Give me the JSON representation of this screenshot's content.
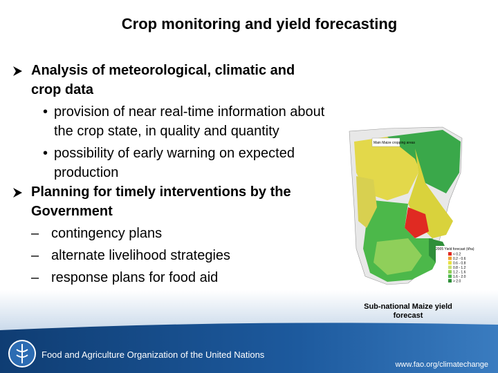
{
  "title": "Crop monitoring and yield forecasting",
  "items": [
    {
      "text": "Analysis of meteorological, climatic and crop data",
      "sub": [
        {
          "marker": "•",
          "text": "provision of near real-time information about the crop state, in quality and quantity"
        },
        {
          "marker": "•",
          "text": "possibility of early warning on expected production"
        }
      ]
    },
    {
      "text": "Planning for timely interventions by the Government",
      "sub": [
        {
          "marker": "–",
          "text": "contingency plans"
        },
        {
          "marker": "–",
          "text": "alternate livelihood strategies"
        },
        {
          "marker": "–",
          "text": "response plans for food aid"
        }
      ]
    }
  ],
  "map": {
    "inset_label": "Main Maize cropping areas",
    "legend_title": "2005 Yield forecast (t/ha)",
    "legend": [
      "< 0.2",
      "0.2 - 0.6",
      "0.6 - 0.8",
      "0.8 - 1.2",
      "1.2 - 1.6",
      "1.6 - 2.0",
      "> 2.0"
    ],
    "caption": "Sub-national Maize yield forecast"
  },
  "footer": {
    "organization": "Food and Agriculture Organization of the United Nations",
    "url": "www.fao.org/climatechange"
  }
}
